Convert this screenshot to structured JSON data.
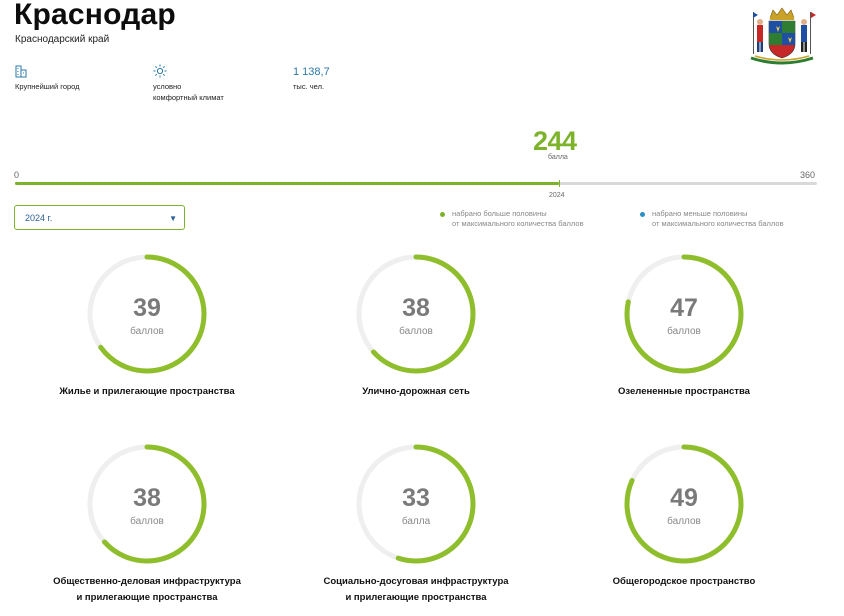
{
  "header": {
    "city": "Краснодар",
    "region": "Краснодарский край"
  },
  "stats": [
    {
      "icon": "building-icon",
      "label_line1": "Крупнейший город",
      "label_line2": ""
    },
    {
      "icon": "sun-icon",
      "label_line1": "условно",
      "label_line2": "комфортный климат"
    }
  ],
  "population": {
    "value": "1 138,7",
    "unit": "тыс. чел."
  },
  "overall": {
    "score": 244,
    "max": 360,
    "min_label": "0",
    "max_label": "360",
    "score_text": "244",
    "unit": "балла",
    "year": "2024",
    "accent": "#7cb32a"
  },
  "year_select": {
    "value": "2024 г."
  },
  "legend": {
    "above_line1": "набрано больше половины",
    "above_line2": "от максимального количества баллов",
    "above_color": "#7cb32a",
    "below_line1": "набрано меньше половины",
    "below_line2": "от максимального количества баллов",
    "below_color": "#2b8fc7"
  },
  "categories": [
    {
      "score": "39",
      "score_value": 39,
      "max": 60,
      "unit": "баллов",
      "label_line1": "Жилье и прилегающие пространства",
      "label_line2": ""
    },
    {
      "score": "38",
      "score_value": 38,
      "max": 60,
      "unit": "баллов",
      "label_line1": "Улично-дорожная сеть",
      "label_line2": ""
    },
    {
      "score": "47",
      "score_value": 47,
      "max": 60,
      "unit": "баллов",
      "label_line1": "Озелененные пространства",
      "label_line2": ""
    },
    {
      "score": "38",
      "score_value": 38,
      "max": 60,
      "unit": "баллов",
      "label_line1": "Общественно-деловая инфраструктура",
      "label_line2": "и прилегающие пространства"
    },
    {
      "score": "33",
      "score_value": 33,
      "max": 60,
      "unit": "балла",
      "label_line1": "Социально-досуговая инфраструктура",
      "label_line2": "и прилегающие пространства"
    },
    {
      "score": "49",
      "score_value": 49,
      "max": 60,
      "unit": "баллов",
      "label_line1": "Общегородское пространство",
      "label_line2": ""
    }
  ]
}
